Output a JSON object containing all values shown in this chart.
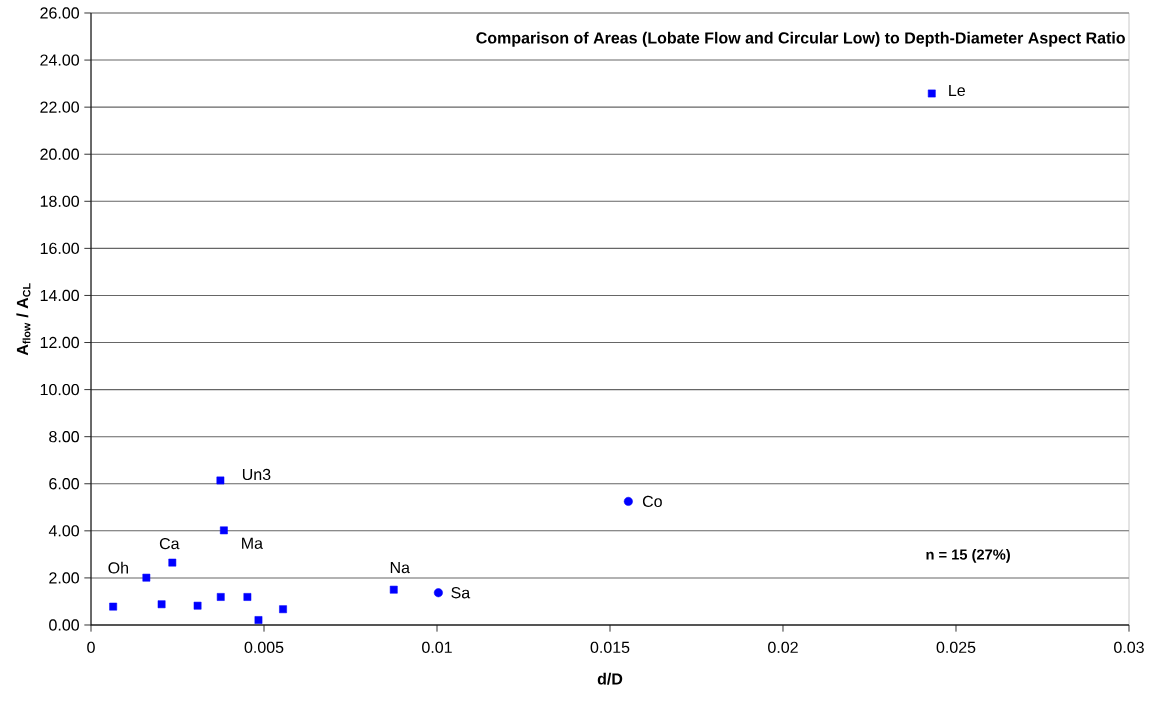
{
  "chart_data": {
    "type": "scatter",
    "title": "Comparison of Areas (Lobate Flow and Circular Low) to Depth-Diameter Aspect Ratio",
    "xlabel": "d/D",
    "ylabel": "A$_{flow}$ / A$_{CL}$",
    "series": [
      {
        "color": "#0000ff",
        "marker": "square",
        "x": [
          0.00064,
          0.0016,
          0.00204,
          0.00235,
          0.00308,
          0.00374,
          0.00375,
          0.00384,
          0.00452,
          0.00484,
          0.00555,
          0.00875,
          0.0243
        ],
        "values": [
          0.78,
          2.01,
          0.88,
          2.65,
          0.82,
          6.14,
          1.19,
          4.02,
          1.19,
          0.21,
          0.67,
          1.5,
          22.58
        ]
      },
      {
        "color": "#0000ff",
        "marker": "circle",
        "x": [
          0.01004,
          0.01553
        ],
        "values": [
          1.37,
          5.25
        ]
      }
    ],
    "annotations": [
      {
        "text": "Oh",
        "x": 0.0016,
        "y": 2.01
      },
      {
        "text": "Ca",
        "x": 0.00235,
        "y": 2.65
      },
      {
        "text": "Un3",
        "x": 0.00374,
        "y": 6.14
      },
      {
        "text": "Ma",
        "x": 0.00384,
        "y": 4.02
      },
      {
        "text": "Na",
        "x": 0.00875,
        "y": 1.5
      },
      {
        "text": "Sa",
        "x": 0.01004,
        "y": 1.37
      },
      {
        "text": "Co",
        "x": 0.01553,
        "y": 5.25
      },
      {
        "text": "Le",
        "x": 0.0243,
        "y": 22.58
      },
      "n = 15 (27%)"
    ],
    "xlim": [
      0,
      0.03
    ],
    "ylim": [
      0,
      26
    ],
    "xticks": [
      0,
      0.005,
      0.01,
      0.015,
      0.02,
      0.025,
      0.03
    ],
    "yticks": [
      {
        "value": 0,
        "label": "0.00"
      },
      {
        "value": 2,
        "label": "2.00"
      },
      {
        "value": 4,
        "label": "4.00"
      },
      {
        "value": 6,
        "label": "6.00"
      },
      {
        "value": 8,
        "label": "8.00"
      },
      {
        "value": 10,
        "label": "10.00"
      },
      {
        "value": 12,
        "label": "12.00"
      },
      {
        "value": 14,
        "label": "14.00"
      },
      {
        "value": 16,
        "label": "16.00"
      },
      {
        "value": 18,
        "label": "18.00"
      },
      {
        "value": 20,
        "label": "20.00"
      },
      {
        "value": 22,
        "label": "22.00"
      },
      {
        "value": 24,
        "label": "24.00"
      },
      {
        "value": 26,
        "label": "26.00"
      }
    ],
    "grid": "y"
  }
}
